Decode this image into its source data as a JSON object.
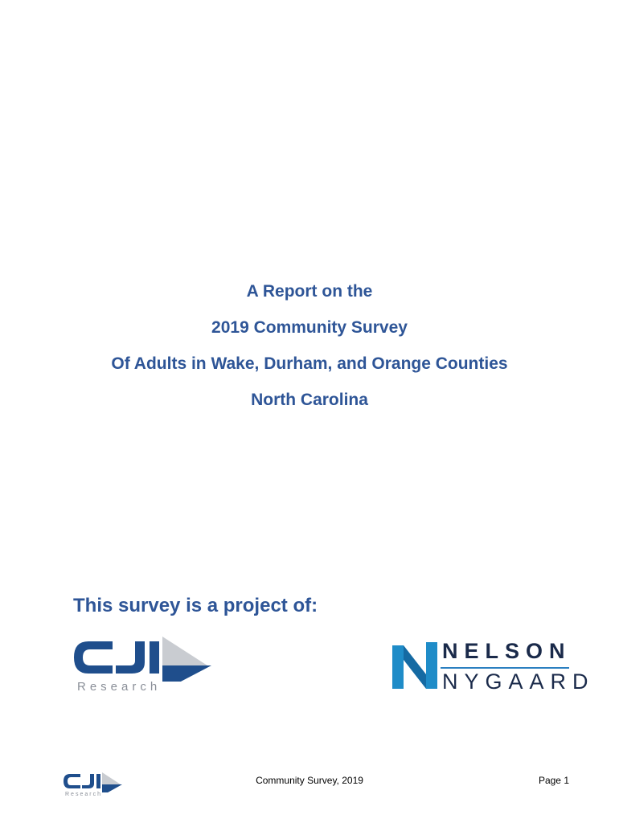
{
  "title": {
    "line1": "A Report on the",
    "line2": "2019 Community Survey",
    "line3": "Of Adults in Wake, Durham, and Orange Counties",
    "line4": "North Carolina"
  },
  "project": {
    "heading": "This survey is a project of:"
  },
  "logos": {
    "cji": {
      "mark": "CJI",
      "subtitle": "Research"
    },
    "nelson_nygaard": {
      "word1": "NELSON",
      "word2": "NYGAARD"
    }
  },
  "footer": {
    "logo_mark": "CJI",
    "logo_subtitle": "Research",
    "center_text": "Community Survey, 2019",
    "page_label": "Page 1"
  },
  "colors": {
    "title_blue": "#2e5597",
    "cji_blue": "#1f4e8c",
    "cji_gray": "#c9ccd1",
    "nn_blue": "#1f8cc8",
    "nn_navy": "#1a2a4a"
  }
}
